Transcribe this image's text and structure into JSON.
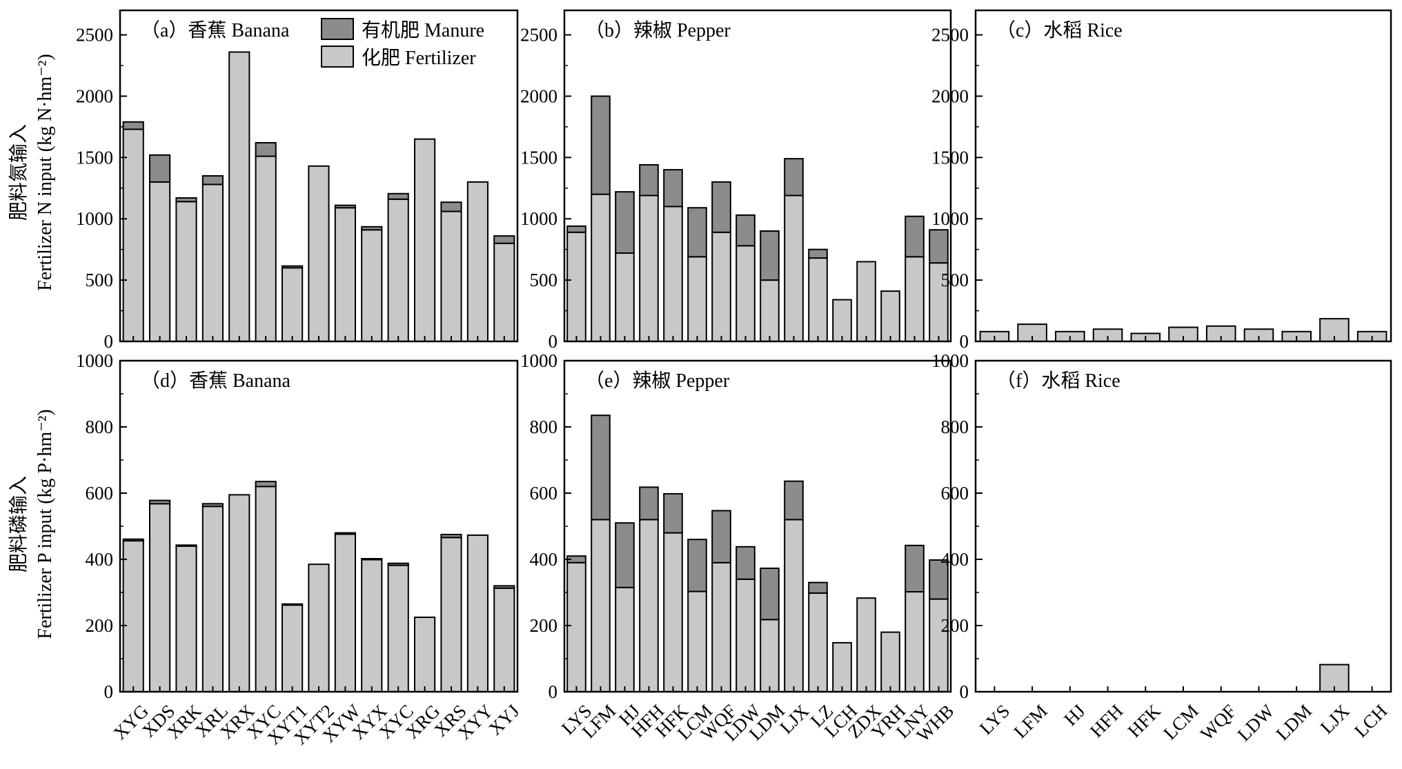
{
  "colors": {
    "fertilizer": "#c8c8c8",
    "manure": "#8c8c8c",
    "axis": "#000000",
    "background": "#ffffff"
  },
  "legend": {
    "manure_label": "有机肥 Manure",
    "fertilizer_label": "化肥 Fertilizer"
  },
  "ylabels": {
    "n_line1": "肥料氮输入",
    "n_line2": "Fertilizer N input (kg N·hm⁻²)",
    "p_line1": "肥料磷输入",
    "p_line2": "Fertilizer P input (kg P·hm⁻²)"
  },
  "chart_data": [
    {
      "id": "a",
      "type": "bar",
      "stacked": true,
      "title": "（a）香蕉 Banana",
      "ylim": [
        0,
        2700
      ],
      "yticks": [
        0,
        500,
        1000,
        1500,
        2000,
        2500
      ],
      "categories": [
        "XYG",
        "XDS",
        "XRK",
        "XRL",
        "XRX",
        "XYC",
        "XYT1",
        "XYT2",
        "XYW",
        "XYX",
        "XYC",
        "XRG",
        "XRS",
        "XYY",
        "XYJ"
      ],
      "series": [
        {
          "name": "化肥 Fertilizer",
          "values": [
            1730,
            1300,
            1140,
            1280,
            2360,
            1510,
            600,
            1430,
            1090,
            910,
            1160,
            1650,
            1060,
            1300,
            800
          ]
        },
        {
          "name": "有机肥 Manure",
          "values": [
            60,
            220,
            30,
            70,
            0,
            110,
            15,
            0,
            20,
            25,
            45,
            0,
            75,
            0,
            60
          ]
        }
      ]
    },
    {
      "id": "b",
      "type": "bar",
      "stacked": true,
      "title": "（b）辣椒 Pepper",
      "ylim": [
        0,
        2700
      ],
      "yticks": [
        0,
        500,
        1000,
        1500,
        2000,
        2500
      ],
      "categories": [
        "LYS",
        "LFM",
        "HJ",
        "HFH",
        "HFK",
        "LCM",
        "WQF",
        "LDW",
        "LDM",
        "LJX",
        "LZ",
        "LCH",
        "ZDX",
        "YRH",
        "LNY",
        "WHB"
      ],
      "series": [
        {
          "name": "化肥 Fertilizer",
          "values": [
            890,
            1200,
            720,
            1190,
            1100,
            690,
            890,
            780,
            500,
            1190,
            680,
            340,
            650,
            410,
            690,
            640
          ]
        },
        {
          "name": "有机肥 Manure",
          "values": [
            50,
            800,
            500,
            250,
            300,
            400,
            410,
            250,
            400,
            300,
            70,
            0,
            0,
            0,
            330,
            270
          ]
        }
      ]
    },
    {
      "id": "c",
      "type": "bar",
      "stacked": true,
      "title": "（c）水稻 Rice",
      "ylim": [
        0,
        2700
      ],
      "yticks": [
        0,
        500,
        1000,
        1500,
        2000,
        2500
      ],
      "categories": [
        "LYS",
        "LFM",
        "HJ",
        "HFH",
        "HFK",
        "LCM",
        "WQF",
        "LDW",
        "LDM",
        "LJX",
        "LCH"
      ],
      "series": [
        {
          "name": "化肥 Fertilizer",
          "values": [
            80,
            140,
            80,
            100,
            65,
            115,
            125,
            100,
            80,
            185,
            80
          ]
        },
        {
          "name": "有机肥 Manure",
          "values": [
            0,
            0,
            0,
            0,
            0,
            0,
            0,
            0,
            0,
            0,
            0
          ]
        }
      ]
    },
    {
      "id": "d",
      "type": "bar",
      "stacked": true,
      "title": "（d）香蕉 Banana",
      "ylim": [
        0,
        1000
      ],
      "yticks": [
        0,
        200,
        400,
        600,
        800,
        1000
      ],
      "categories": [
        "XYG",
        "XDS",
        "XRK",
        "XRL",
        "XRX",
        "XYC",
        "XYT1",
        "XYT2",
        "XYW",
        "XYX",
        "XYC",
        "XRG",
        "XRS",
        "XYY",
        "XYJ"
      ],
      "series": [
        {
          "name": "化肥 Fertilizer",
          "values": [
            456,
            568,
            440,
            560,
            595,
            620,
            262,
            385,
            476,
            399,
            382,
            225,
            466,
            473,
            313
          ]
        },
        {
          "name": "有机肥 Manure",
          "values": [
            5,
            10,
            3,
            8,
            0,
            15,
            3,
            0,
            4,
            3,
            6,
            0,
            9,
            0,
            7
          ]
        }
      ]
    },
    {
      "id": "e",
      "type": "bar",
      "stacked": true,
      "title": "（e）辣椒 Pepper",
      "ylim": [
        0,
        1000
      ],
      "yticks": [
        0,
        200,
        400,
        600,
        800,
        1000
      ],
      "categories": [
        "LYS",
        "LFM",
        "HJ",
        "HFH",
        "HFK",
        "LCM",
        "WQF",
        "LDW",
        "LDM",
        "LJX",
        "LZ",
        "LCH",
        "ZDX",
        "YRH",
        "LNY",
        "WHB"
      ],
      "series": [
        {
          "name": "化肥 Fertilizer",
          "values": [
            390,
            520,
            315,
            520,
            480,
            303,
            390,
            340,
            218,
            520,
            298,
            148,
            283,
            180,
            302,
            280
          ]
        },
        {
          "name": "有机肥 Manure",
          "values": [
            20,
            315,
            195,
            98,
            118,
            157,
            157,
            98,
            155,
            116,
            32,
            0,
            0,
            0,
            140,
            118
          ]
        }
      ]
    },
    {
      "id": "f",
      "type": "bar",
      "stacked": true,
      "title": "（f）水稻 Rice",
      "ylim": [
        0,
        1000
      ],
      "yticks": [
        0,
        200,
        400,
        600,
        800,
        1000
      ],
      "categories": [
        "LYS",
        "LFM",
        "HJ",
        "HFH",
        "HFK",
        "LCM",
        "WQF",
        "LDW",
        "LDM",
        "LJX",
        "LCH"
      ],
      "series": [
        {
          "name": "化肥 Fertilizer",
          "values": [
            0,
            0,
            0,
            0,
            0,
            0,
            0,
            0,
            0,
            82,
            0
          ]
        },
        {
          "name": "有机肥 Manure",
          "values": [
            0,
            0,
            0,
            0,
            0,
            0,
            0,
            0,
            0,
            0,
            0
          ]
        }
      ]
    }
  ]
}
